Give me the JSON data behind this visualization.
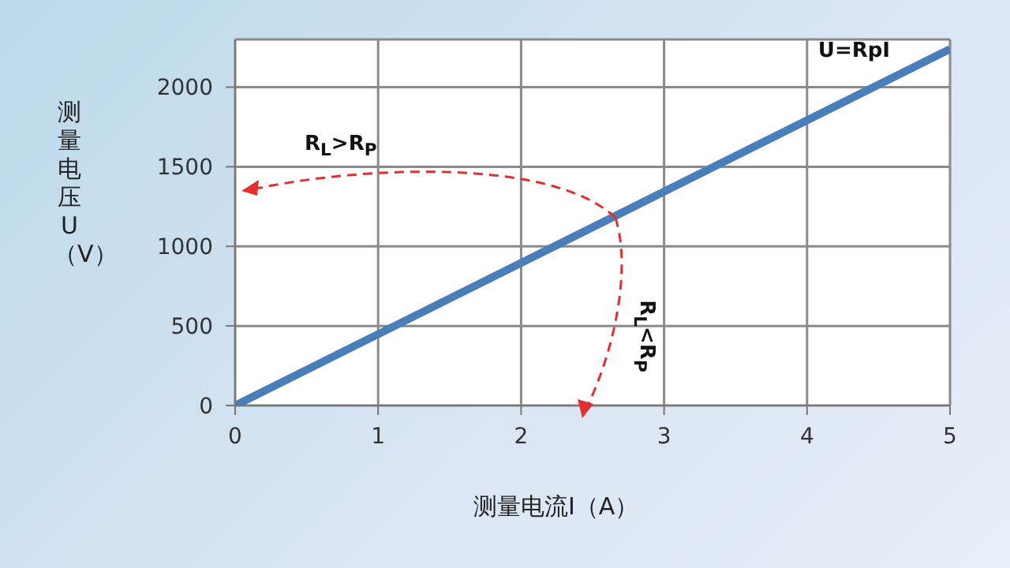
{
  "chart_data": {
    "type": "line",
    "xlabel": "测量电流I（A）",
    "ylabel": "测量电压U（V）",
    "x": [
      0,
      5
    ],
    "series": [
      {
        "name": "U=RpI",
        "color": "#4a7ebb",
        "values": [
          0,
          2240
        ]
      }
    ],
    "xlim": [
      0,
      5
    ],
    "xticks": [
      0,
      1,
      2,
      3,
      4,
      5
    ],
    "ylim": [
      0,
      2300
    ],
    "yticks": [
      0,
      500,
      1000,
      1500,
      2000
    ],
    "grid": true,
    "marker": "none",
    "line_style": "solid",
    "annotations": [
      "R$_{L}$>R$_{P}$",
      "R$_{L}$<R$_{P}$"
    ]
  }
}
